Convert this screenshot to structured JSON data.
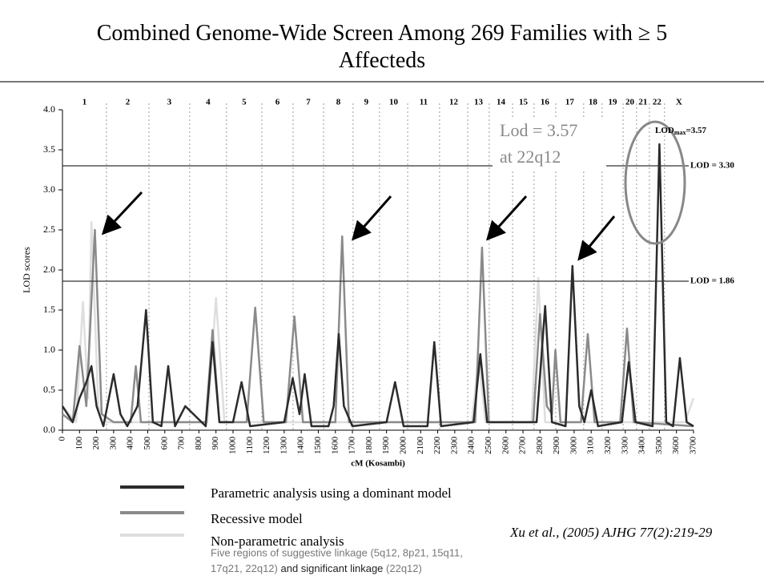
{
  "chart_data": {
    "type": "line",
    "title": "Combined Genome-Wide Screen Among 269 Families with ≥ 5 Affecteds",
    "xlabel": "cM (Kosambi)",
    "ylabel": "LOD scores",
    "xlim": [
      0,
      3700
    ],
    "ylim": [
      0,
      4
    ],
    "xticks": [
      0,
      100,
      200,
      300,
      400,
      500,
      600,
      700,
      800,
      900,
      1000,
      1100,
      1200,
      1300,
      1400,
      1500,
      1600,
      1700,
      1800,
      1900,
      2000,
      2100,
      2200,
      2300,
      2400,
      2500,
      2600,
      2700,
      2800,
      2900,
      3000,
      3100,
      3200,
      3300,
      3400,
      3500,
      3600,
      3700
    ],
    "yticks": [
      {
        "value": 0,
        "label": "0.0"
      },
      {
        "value": 0.5,
        "label": "0.5"
      },
      {
        "value": 1,
        "label": "1.0"
      },
      {
        "value": 1.5,
        "label": "1.5"
      },
      {
        "value": 2,
        "label": "2.0"
      },
      {
        "value": 2.5,
        "label": "2.5"
      },
      {
        "value": 3,
        "label": "3.0"
      },
      {
        "value": 3.5,
        "label": "3.5"
      },
      {
        "value": 4,
        "label": "4.0"
      }
    ],
    "chromosomes": [
      "1",
      "2",
      "3",
      "4",
      "5",
      "6",
      "7",
      "8",
      "9",
      "10",
      "11",
      "12",
      "13",
      "14",
      "15",
      "16",
      "17",
      "18",
      "19",
      "20",
      "21",
      "22",
      "X"
    ],
    "chromosome_boundaries": [
      258,
      507,
      746,
      962,
      1169,
      1352,
      1531,
      1704,
      1859,
      2024,
      2211,
      2376,
      2502,
      2639,
      2765,
      2892,
      3056,
      3164,
      3287,
      3366,
      3441,
      3530
    ],
    "reference_lines": [
      {
        "value": 3.3,
        "label": "LOD = 3.30"
      },
      {
        "value": 1.86,
        "label": "LOD = 1.86"
      }
    ],
    "series": [
      {
        "name": "Parametric analysis using a dominant model",
        "color": "#2b2b2b",
        "x": [
          0,
          60,
          100,
          140,
          170,
          200,
          240,
          300,
          340,
          380,
          440,
          490,
          530,
          580,
          620,
          660,
          720,
          840,
          880,
          920,
          1000,
          1050,
          1100,
          1300,
          1350,
          1390,
          1420,
          1460,
          1560,
          1590,
          1620,
          1650,
          1700,
          1900,
          1950,
          2000,
          2140,
          2180,
          2220,
          2410,
          2450,
          2490,
          2780,
          2830,
          2870,
          2950,
          2990,
          3030,
          3060,
          3100,
          3140,
          3280,
          3320,
          3360,
          3460,
          3500,
          3540,
          3580,
          3620,
          3660,
          3700
        ],
        "values": [
          0.3,
          0.1,
          0.4,
          0.6,
          0.8,
          0.3,
          0.05,
          0.7,
          0.2,
          0.05,
          0.3,
          1.5,
          0.1,
          0.05,
          0.8,
          0.05,
          0.3,
          0.05,
          1.1,
          0.1,
          0.1,
          0.6,
          0.05,
          0.1,
          0.65,
          0.2,
          0.7,
          0.05,
          0.05,
          0.3,
          1.2,
          0.3,
          0.05,
          0.1,
          0.6,
          0.05,
          0.05,
          1.1,
          0.05,
          0.1,
          0.95,
          0.1,
          0.1,
          1.55,
          0.1,
          0.05,
          2.05,
          0.3,
          0.1,
          0.5,
          0.05,
          0.1,
          0.85,
          0.1,
          0.05,
          3.57,
          0.1,
          0.05,
          0.9,
          0.1,
          0.05
        ]
      },
      {
        "name": "Recessive model",
        "color": "#8a8a8a",
        "x": [
          0,
          60,
          100,
          140,
          190,
          230,
          300,
          400,
          430,
          460,
          560,
          840,
          880,
          920,
          1080,
          1130,
          1180,
          1310,
          1360,
          1410,
          1600,
          1640,
          1680,
          2420,
          2460,
          2500,
          2760,
          2800,
          2840,
          2870,
          2890,
          2920,
          3040,
          3080,
          3120,
          3270,
          3310,
          3350,
          3700
        ],
        "values": [
          0.2,
          0.1,
          1.05,
          0.3,
          2.5,
          0.2,
          0.1,
          0.1,
          0.8,
          0.1,
          0.1,
          0.1,
          1.25,
          0.1,
          0.1,
          1.53,
          0.1,
          0.1,
          1.42,
          0.1,
          0.1,
          2.42,
          0.1,
          0.1,
          2.28,
          0.1,
          0.1,
          1.45,
          0.3,
          0.2,
          1.0,
          0.1,
          0.1,
          1.2,
          0.1,
          0.1,
          1.27,
          0.1,
          0.05
        ]
      },
      {
        "name": "Non-parametric analysis",
        "color": "#dedede",
        "x": [
          0,
          80,
          120,
          150,
          170,
          210,
          260,
          850,
          900,
          950,
          2400,
          2440,
          2480,
          2750,
          2790,
          2830,
          3650,
          3700
        ],
        "values": [
          0.3,
          0.1,
          1.6,
          0.4,
          2.6,
          0.3,
          0.1,
          0.1,
          1.65,
          0.1,
          0.1,
          0.9,
          0.1,
          0.1,
          1.9,
          0.1,
          0.1,
          0.4
        ]
      }
    ],
    "max_annotation": {
      "text": "LOD",
      "sub": "max",
      "rest": "=3.57"
    },
    "callout": [
      "Lod = 3.57",
      "at 22q12"
    ],
    "citation": "Xu et al., (2005) AJHG 77(2):219-29",
    "footnote": {
      "part1": "Five regions of suggestive linkage (5q12, 8p21, 15q11,",
      "part2": "17q21, 22q12)",
      "part3": "and significant linkage",
      "part4": "(22q12)"
    }
  }
}
